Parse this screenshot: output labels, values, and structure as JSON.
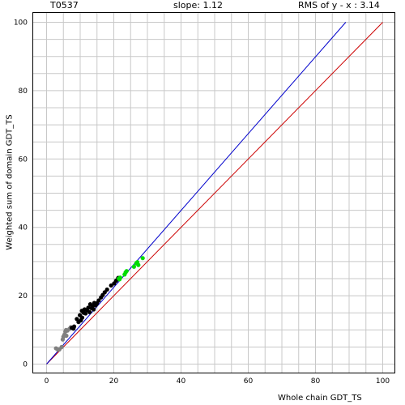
{
  "header": {
    "target": "T0537",
    "slope": "slope: 1.12",
    "rms": "RMS of  y - x : 3.14"
  },
  "chart_data": {
    "type": "scatter",
    "title": "",
    "xlabel": "Whole chain GDT_TS",
    "ylabel": "Weighted sum of domain GDT_TS",
    "xlim": [
      0,
      100
    ],
    "ylim": [
      0,
      100
    ],
    "xticks": [
      0,
      20,
      40,
      60,
      80,
      100
    ],
    "yticks": [
      0,
      20,
      40,
      60,
      80,
      100
    ],
    "grid": true,
    "lines": [
      {
        "name": "y = x",
        "color": "#cc0000",
        "from": [
          0,
          0
        ],
        "to": [
          100,
          100
        ]
      },
      {
        "name": "fit",
        "color": "#0000cc",
        "from": [
          0,
          0
        ],
        "to": [
          89,
          100
        ]
      }
    ],
    "series": [
      {
        "color": "#808080",
        "points": [
          [
            2.8,
            4.6
          ],
          [
            3.8,
            4.3
          ],
          [
            4.5,
            5.0
          ],
          [
            4.8,
            7.2
          ],
          [
            5.0,
            8.0
          ],
          [
            5.3,
            8.6
          ],
          [
            5.6,
            9.5
          ],
          [
            5.8,
            10.0
          ],
          [
            6.2,
            9.8
          ],
          [
            6.8,
            10.3
          ],
          [
            7.2,
            10.8
          ],
          [
            5.9,
            8.3
          ],
          [
            3.4,
            4.2
          ]
        ]
      },
      {
        "color": "#000000",
        "points": [
          [
            7.5,
            10.6
          ],
          [
            8.2,
            11.0
          ],
          [
            9.0,
            13.2
          ],
          [
            9.5,
            12.3
          ],
          [
            9.9,
            14.3
          ],
          [
            10.2,
            12.8
          ],
          [
            10.6,
            13.6
          ],
          [
            11.0,
            15.0
          ],
          [
            11.3,
            16.0
          ],
          [
            11.6,
            14.8
          ],
          [
            12.0,
            15.8
          ],
          [
            12.4,
            16.5
          ],
          [
            12.8,
            15.2
          ],
          [
            13.3,
            16.4
          ],
          [
            13.7,
            17.0
          ],
          [
            14.0,
            16.0
          ],
          [
            14.6,
            17.2
          ],
          [
            15.0,
            17.8
          ],
          [
            15.5,
            18.6
          ],
          [
            16.2,
            19.5
          ],
          [
            16.7,
            20.2
          ],
          [
            17.3,
            21.0
          ],
          [
            18.0,
            21.8
          ],
          [
            19.2,
            23.0
          ],
          [
            20.1,
            23.6
          ],
          [
            20.7,
            24.4
          ],
          [
            21.3,
            25.2
          ],
          [
            8.0,
            10.4
          ],
          [
            10.5,
            15.6
          ],
          [
            13.0,
            17.5
          ],
          [
            14.2,
            17.9
          ]
        ]
      },
      {
        "color": "#00dd00",
        "points": [
          [
            21.5,
            25.0
          ],
          [
            21.9,
            25.3
          ],
          [
            23.2,
            26.2
          ],
          [
            23.8,
            27.2
          ],
          [
            26.0,
            28.5
          ],
          [
            26.7,
            29.5
          ],
          [
            27.3,
            29.0
          ],
          [
            28.6,
            31.0
          ],
          [
            27.0,
            29.8
          ],
          [
            23.5,
            26.8
          ],
          [
            21.7,
            24.8
          ]
        ]
      }
    ]
  }
}
